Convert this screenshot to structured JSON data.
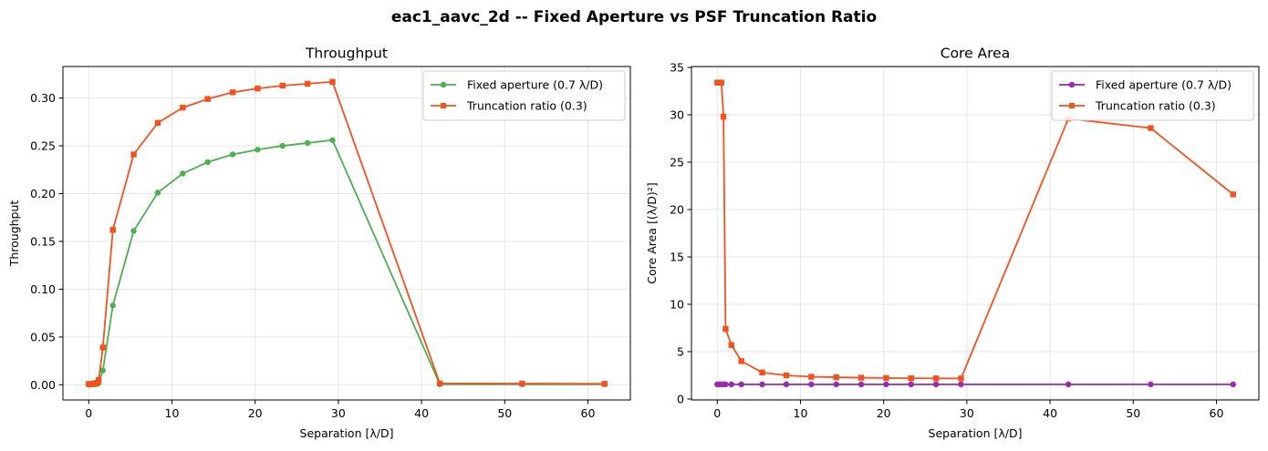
{
  "suptitle": "eac1_aavc_2d -- Fixed Aperture vs PSF Truncation Ratio",
  "colors": {
    "fixed_throughput": "#4caf50",
    "truncation": "#f4511e",
    "fixed_core": "#9c27b0",
    "grid": "#e6e6e6",
    "axes": "#000000"
  },
  "chart_data": [
    {
      "type": "line",
      "title": "Throughput",
      "xlabel": "Separation [λ/D]",
      "ylabel": "Throughput",
      "xlim": [
        -3.1,
        65.1
      ],
      "ylim": [
        -0.0159,
        0.333
      ],
      "xticks": [
        0,
        10,
        20,
        30,
        40,
        50,
        60
      ],
      "xtick_labels": [
        "0",
        "10",
        "20",
        "30",
        "40",
        "50",
        "60"
      ],
      "yticks": [
        0,
        0.05,
        0.1,
        0.15,
        0.2,
        0.25,
        0.3
      ],
      "ytick_labels": [
        "0.00",
        "0.05",
        "0.10",
        "0.15",
        "0.20",
        "0.25",
        "0.30"
      ],
      "grid": true,
      "legend_position": "top-right",
      "series": [
        {
          "name": "Fixed aperture (0.7 λ/D)",
          "color": "#4caf50",
          "marker": "circle",
          "x": [
            0,
            0.25,
            0.5,
            0.75,
            1.0,
            1.2,
            1.7,
            2.9,
            5.4,
            8.3,
            11.3,
            14.3,
            17.3,
            20.3,
            23.3,
            26.3,
            29.3,
            42.2,
            52.1,
            62.0
          ],
          "y": [
            0.0002,
            0.0002,
            0.0003,
            0.0005,
            0.0008,
            0.002,
            0.015,
            0.083,
            0.161,
            0.201,
            0.221,
            0.233,
            0.241,
            0.246,
            0.25,
            0.253,
            0.256,
            0.0005,
            0.0005,
            0.0005
          ]
        },
        {
          "name": "Truncation ratio (0.3)",
          "color": "#f4511e",
          "marker": "square",
          "x": [
            0,
            0.25,
            0.5,
            0.75,
            1.0,
            1.2,
            1.7,
            2.9,
            5.4,
            8.3,
            11.3,
            14.3,
            17.3,
            20.3,
            23.3,
            26.3,
            29.3,
            42.2,
            52.1,
            62.0
          ],
          "y": [
            0.0008,
            0.0008,
            0.001,
            0.0015,
            0.002,
            0.005,
            0.039,
            0.162,
            0.241,
            0.274,
            0.29,
            0.299,
            0.306,
            0.31,
            0.313,
            0.315,
            0.317,
            0.0015,
            0.0012,
            0.001
          ]
        }
      ]
    },
    {
      "type": "line",
      "title": "Core Area",
      "xlabel": "Separation [λ/D]",
      "ylabel": "Core Area [(λ/D)²]",
      "xlim": [
        -3.1,
        65.1
      ],
      "ylim": [
        -0.1,
        35.1
      ],
      "xticks": [
        0,
        10,
        20,
        30,
        40,
        50,
        60
      ],
      "xtick_labels": [
        "0",
        "10",
        "20",
        "30",
        "40",
        "50",
        "60"
      ],
      "yticks": [
        0,
        5,
        10,
        15,
        20,
        25,
        30,
        35
      ],
      "ytick_labels": [
        "0",
        "5",
        "10",
        "15",
        "20",
        "25",
        "30",
        "35"
      ],
      "grid": true,
      "legend_position": "top-right",
      "series": [
        {
          "name": "Fixed aperture (0.7 λ/D)",
          "color": "#9c27b0",
          "marker": "circle",
          "x": [
            0,
            0.25,
            0.5,
            0.75,
            1.0,
            1.7,
            2.9,
            5.4,
            8.3,
            11.3,
            14.3,
            17.3,
            20.3,
            23.3,
            26.3,
            29.3,
            42.2,
            52.1,
            62.0
          ],
          "y": [
            1.55,
            1.55,
            1.55,
            1.55,
            1.55,
            1.55,
            1.55,
            1.55,
            1.55,
            1.55,
            1.55,
            1.55,
            1.55,
            1.55,
            1.55,
            1.55,
            1.55,
            1.55,
            1.55
          ]
        },
        {
          "name": "Truncation ratio (0.3)",
          "color": "#f4511e",
          "marker": "square",
          "x": [
            0,
            0.25,
            0.5,
            0.75,
            1.0,
            1.7,
            2.9,
            5.4,
            8.3,
            11.3,
            14.3,
            17.3,
            20.3,
            23.3,
            26.3,
            29.3,
            42.2,
            52.1,
            62.0
          ],
          "y": [
            33.4,
            33.4,
            33.4,
            29.8,
            7.4,
            5.7,
            4.0,
            2.8,
            2.5,
            2.35,
            2.3,
            2.25,
            2.22,
            2.2,
            2.18,
            2.17,
            29.6,
            28.6,
            21.6
          ]
        }
      ]
    }
  ]
}
